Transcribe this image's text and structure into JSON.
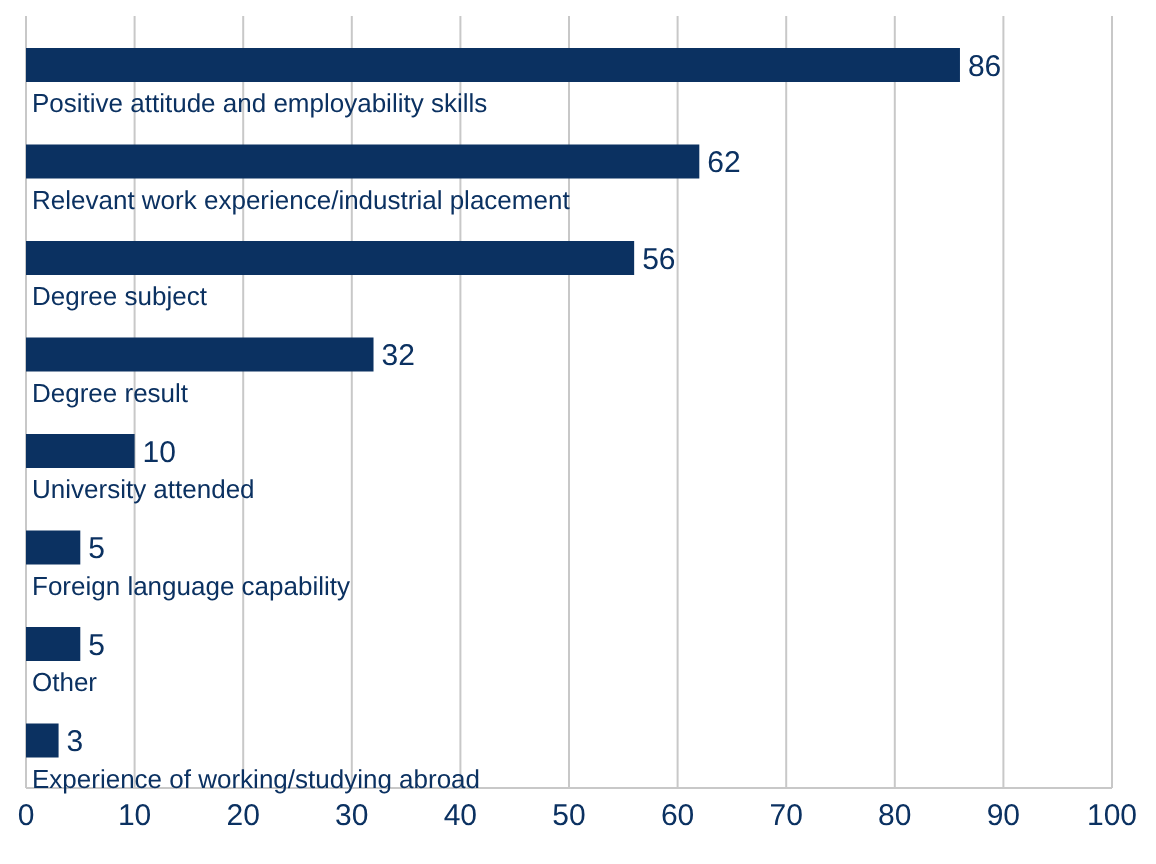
{
  "chart_data": {
    "type": "bar",
    "orientation": "horizontal",
    "categories": [
      "Positive attitude and employability skills",
      "Relevant work experience/industrial placement",
      "Degree subject",
      "Degree result",
      "University attended",
      "Foreign language capability",
      "Other",
      "Experience of working/studying abroad"
    ],
    "values": [
      86,
      62,
      56,
      32,
      10,
      5,
      5,
      3
    ],
    "color": "#0b3161",
    "xlim": [
      0,
      100
    ],
    "xticks": [
      0,
      10,
      20,
      30,
      40,
      50,
      60,
      70,
      80,
      90,
      100
    ],
    "grid": "x",
    "data_labels": true
  }
}
